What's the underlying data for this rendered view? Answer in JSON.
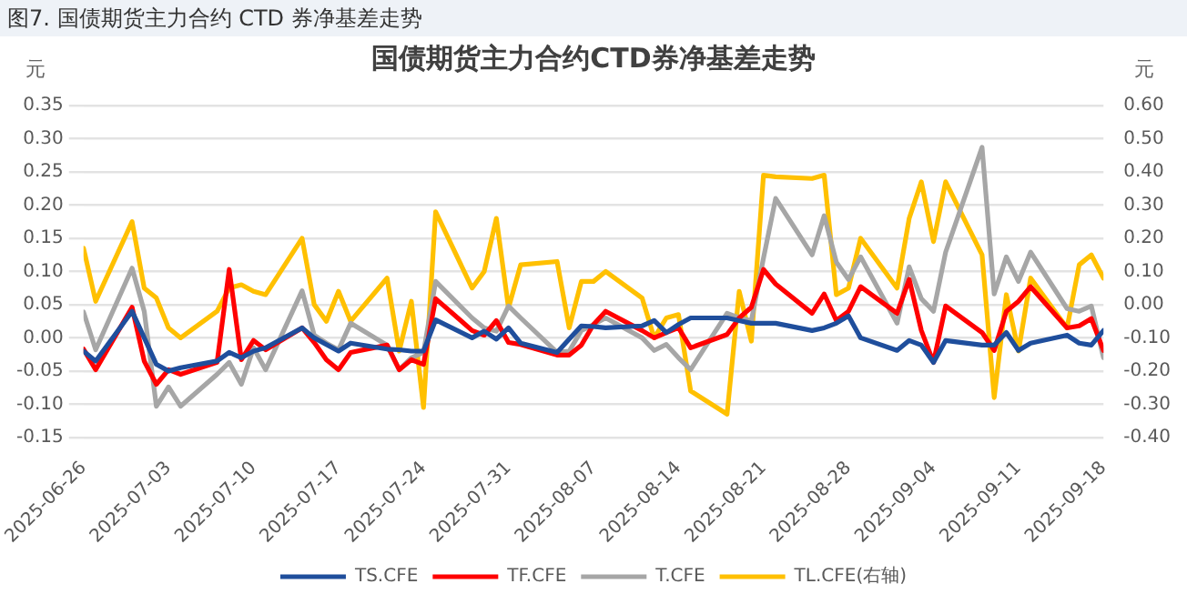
{
  "chart_data": {
    "type": "line",
    "title": "图7. 国债期货主力合约 CTD 券净基差走势",
    "subtitle": "国债期货主力合约CTD券净基差走势",
    "ylabel": "元",
    "y2label": "元",
    "x": [
      "2025-06-26",
      "2025-06-27",
      "2025-06-30",
      "2025-07-01",
      "2025-07-02",
      "2025-07-03",
      "2025-07-04",
      "2025-07-07",
      "2025-07-08",
      "2025-07-09",
      "2025-07-10",
      "2025-07-11",
      "2025-07-14",
      "2025-07-15",
      "2025-07-16",
      "2025-07-17",
      "2025-07-18",
      "2025-07-21",
      "2025-07-22",
      "2025-07-23",
      "2025-07-24",
      "2025-07-25",
      "2025-07-28",
      "2025-07-29",
      "2025-07-30",
      "2025-07-31",
      "2025-08-01",
      "2025-08-04",
      "2025-08-05",
      "2025-08-06",
      "2025-08-07",
      "2025-08-08",
      "2025-08-11",
      "2025-08-12",
      "2025-08-13",
      "2025-08-14",
      "2025-08-15",
      "2025-08-18",
      "2025-08-19",
      "2025-08-20",
      "2025-08-21",
      "2025-08-22",
      "2025-08-25",
      "2025-08-26",
      "2025-08-27",
      "2025-08-28",
      "2025-08-29",
      "2025-09-01",
      "2025-09-02",
      "2025-09-03",
      "2025-09-04",
      "2025-09-05",
      "2025-09-08",
      "2025-09-09",
      "2025-09-10",
      "2025-09-11",
      "2025-09-12",
      "2025-09-15",
      "2025-09-16",
      "2025-09-17",
      "2025-09-18"
    ],
    "series": [
      {
        "name": "TS.CFE",
        "color": "#1f4e9c",
        "values": [
          -0.02,
          -0.035,
          0.04,
          0.0,
          -0.04,
          -0.05,
          -0.045,
          -0.035,
          -0.022,
          -0.03,
          -0.02,
          -0.015,
          0.015,
          0.0,
          -0.01,
          -0.02,
          -0.008,
          -0.017,
          -0.018,
          -0.02,
          -0.02,
          0.027,
          0.0,
          0.01,
          -0.002,
          0.015,
          -0.008,
          -0.022,
          -0.002,
          0.018,
          0.017,
          0.015,
          0.018,
          0.026,
          0.008,
          0.02,
          0.03,
          0.03,
          0.026,
          0.022,
          0.022,
          0.022,
          0.011,
          0.015,
          0.022,
          0.033,
          0.0,
          -0.019,
          -0.004,
          -0.011,
          -0.037,
          -0.004,
          -0.011,
          -0.011,
          0.008,
          -0.019,
          -0.008,
          0.004,
          -0.008,
          -0.011,
          0.011
        ]
      },
      {
        "name": "TF.CFE",
        "color": "#ff0000",
        "values": [
          -0.017,
          -0.048,
          0.046,
          -0.035,
          -0.07,
          -0.048,
          -0.055,
          -0.037,
          0.103,
          -0.033,
          -0.004,
          -0.018,
          0.015,
          -0.007,
          -0.033,
          -0.048,
          -0.022,
          -0.011,
          -0.048,
          -0.033,
          -0.04,
          0.059,
          0.011,
          0.004,
          0.026,
          -0.007,
          -0.01,
          -0.026,
          -0.026,
          -0.011,
          0.02,
          0.04,
          0.011,
          0.0,
          0.008,
          0.015,
          -0.015,
          0.005,
          0.03,
          0.046,
          0.103,
          0.081,
          0.037,
          0.066,
          0.026,
          0.04,
          0.077,
          0.037,
          0.088,
          0.011,
          -0.037,
          0.048,
          0.008,
          -0.019,
          0.04,
          0.055,
          0.077,
          0.015,
          0.018,
          0.029,
          -0.019
        ]
      },
      {
        "name": "T.CFE",
        "color": "#a6a6a6",
        "values": [
          0.039,
          -0.018,
          0.105,
          0.04,
          -0.103,
          -0.074,
          -0.103,
          -0.055,
          -0.037,
          -0.07,
          -0.015,
          -0.048,
          0.071,
          0.004,
          -0.008,
          -0.018,
          0.022,
          -0.011,
          -0.048,
          -0.03,
          -0.022,
          0.085,
          0.03,
          0.015,
          0.01,
          0.048,
          0.03,
          -0.022,
          -0.02,
          0.011,
          0.02,
          0.03,
          0.0,
          -0.019,
          -0.01,
          -0.03,
          -0.048,
          0.037,
          0.03,
          0.026,
          0.12,
          0.21,
          0.125,
          0.184,
          0.114,
          0.088,
          0.122,
          0.022,
          0.107,
          0.059,
          0.04,
          0.129,
          0.287,
          0.066,
          0.122,
          0.085,
          0.129,
          0.044,
          0.04,
          0.048,
          -0.03
        ]
      },
      {
        "name": "TL.CFE(右轴)",
        "color": "#ffc000",
        "axis": "y2",
        "values": [
          0.17,
          0.01,
          0.25,
          0.05,
          0.02,
          -0.07,
          -0.1,
          -0.02,
          0.05,
          0.06,
          0.04,
          0.03,
          0.2,
          0.0,
          -0.05,
          0.04,
          -0.05,
          0.08,
          -0.14,
          0.01,
          -0.31,
          0.28,
          0.05,
          0.1,
          0.26,
          -0.01,
          0.12,
          0.13,
          -0.07,
          0.07,
          0.07,
          0.1,
          0.02,
          -0.1,
          -0.04,
          -0.03,
          -0.26,
          -0.33,
          0.04,
          -0.11,
          0.39,
          0.385,
          0.38,
          0.39,
          0.03,
          0.05,
          0.2,
          0.05,
          0.26,
          0.37,
          0.19,
          0.37,
          0.15,
          -0.28,
          0.03,
          -0.14,
          0.08,
          -0.07,
          0.12,
          0.15,
          0.08
        ]
      }
    ],
    "xlim": [
      "2025-06-26",
      "2025-09-18"
    ],
    "xticks": [
      "2025-06-26",
      "2025-07-03",
      "2025-07-10",
      "2025-07-17",
      "2025-07-24",
      "2025-07-31",
      "2025-08-07",
      "2025-08-14",
      "2025-08-21",
      "2025-08-28",
      "2025-09-04",
      "2025-09-11",
      "2025-09-18"
    ],
    "ylim": [
      -0.15,
      0.35
    ],
    "yticks": [
      -0.15,
      {
        "value": -0.1,
        "label": "-0.10"
      },
      -0.05,
      {
        "value": 0,
        "label": "0.00"
      },
      0.05,
      {
        "value": 0.1,
        "label": "0.10"
      },
      0.15,
      {
        "value": 0.2,
        "label": "0.20"
      },
      0.25,
      {
        "value": 0.3,
        "label": "0.30"
      },
      0.35
    ],
    "y2lim": [
      -0.4,
      0.6
    ],
    "y2ticks": [
      {
        "value": -0.4,
        "label": "-0.40"
      },
      {
        "value": -0.3,
        "label": "-0.30"
      },
      {
        "value": -0.2,
        "label": "-0.20"
      },
      {
        "value": -0.1,
        "label": "-0.10"
      },
      {
        "value": 0,
        "label": "0.00"
      },
      {
        "value": 0.1,
        "label": "0.10"
      },
      {
        "value": 0.2,
        "label": "0.20"
      },
      {
        "value": 0.3,
        "label": "0.30"
      },
      {
        "value": 0.4,
        "label": "0.40"
      },
      {
        "value": 0.5,
        "label": "0.50"
      },
      {
        "value": 0.6,
        "label": "0.60"
      }
    ],
    "grid": "y",
    "legend": "bottom",
    "marker": "none",
    "line_style": "solid"
  }
}
